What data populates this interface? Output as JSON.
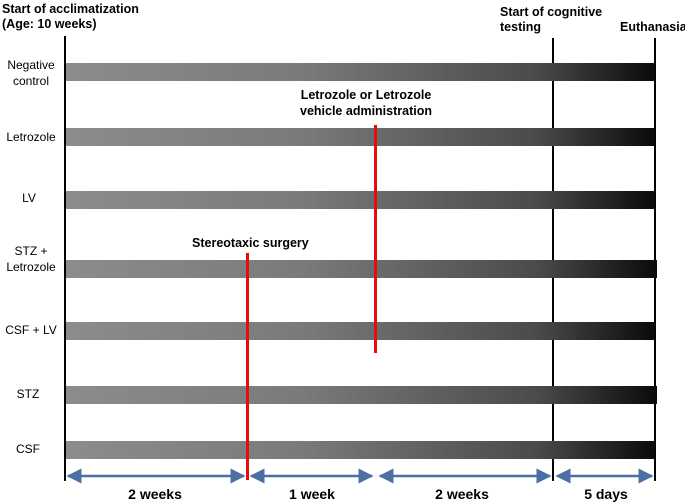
{
  "headers": {
    "start_acclimatization": [
      "Start of acclimatization",
      "(Age: 10 weeks)"
    ],
    "start_cognitive": [
      "Start of cognitive",
      "testing"
    ],
    "euthanasia": "Euthanasia"
  },
  "groups": [
    [
      "Negative",
      "control"
    ],
    [
      "Letrozole"
    ],
    [
      "LV"
    ],
    [
      "STZ +",
      "Letrozole"
    ],
    [
      "CSF + LV"
    ],
    [
      "STZ"
    ],
    [
      "CSF"
    ]
  ],
  "annotations": {
    "letrozole_admin": [
      "Letrozole or Letrozole",
      "vehicle administration"
    ],
    "stereotaxic": "Stereotaxic surgery"
  },
  "durations": [
    "2 weeks",
    "1 week",
    "2 weeks",
    "5 days"
  ],
  "colors": {
    "marker_line": "#e01010",
    "timeline_arrow": "#4a6fa5",
    "bar_start": "#8c8c8c",
    "bar_end": "#0a0a0a"
  }
}
